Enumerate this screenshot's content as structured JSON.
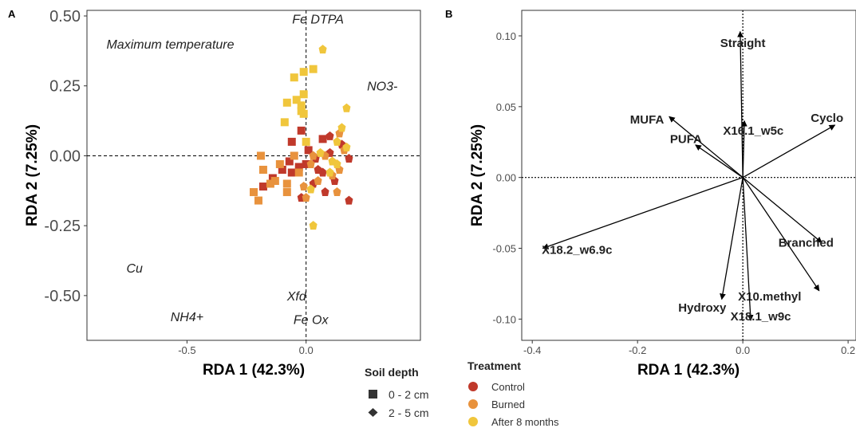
{
  "chart_data": [
    {
      "type": "scatter",
      "panel": "A",
      "xlabel": "RDA 1 (42.3%)",
      "ylabel": "RDA 2 (7.25%)",
      "xlim": [
        -0.92,
        0.48
      ],
      "ylim": [
        -0.66,
        0.52
      ],
      "xticks": [
        -0.5,
        0.0
      ],
      "xtick_labels": [
        "-0.5",
        "0.0"
      ],
      "yticks": [
        0.5,
        0.25,
        0.0,
        -0.25,
        -0.5
      ],
      "ytick_labels": [
        "0.50",
        "0.25",
        "0.00",
        "-0.25",
        "-0.50"
      ],
      "grid": false,
      "reference_lines": "dashed at x=0 and y=0",
      "env_labels": [
        {
          "text": "Fe DTPA",
          "x": 0.05,
          "y": 0.49
        },
        {
          "text": "Maximum temperature",
          "x": -0.57,
          "y": 0.4
        },
        {
          "text": "NO3-",
          "x": 0.32,
          "y": 0.25
        },
        {
          "text": "Cu",
          "x": -0.72,
          "y": -0.4
        },
        {
          "text": "Xfd",
          "x": -0.04,
          "y": -0.5
        },
        {
          "text": "NH4+",
          "x": -0.5,
          "y": -0.575
        },
        {
          "text": "Fe Ox",
          "x": 0.02,
          "y": -0.585
        }
      ],
      "series": [
        {
          "name": "Control",
          "shape": "square",
          "color": "#c0392b",
          "points": [
            [
              -0.06,
              0.05
            ],
            [
              0.01,
              0.02
            ],
            [
              -0.07,
              -0.02
            ],
            [
              -0.03,
              -0.04
            ],
            [
              -0.1,
              -0.05
            ],
            [
              -0.14,
              -0.08
            ],
            [
              -0.18,
              -0.11
            ],
            [
              -0.02,
              0.09
            ],
            [
              0.07,
              0.06
            ],
            [
              0.0,
              -0.03
            ],
            [
              -0.06,
              -0.06
            ]
          ]
        },
        {
          "name": "Control",
          "shape": "diamond",
          "color": "#c0392b",
          "points": [
            [
              0.04,
              -0.01
            ],
            [
              0.1,
              0.01
            ],
            [
              0.15,
              0.04
            ],
            [
              0.18,
              -0.01
            ],
            [
              0.07,
              -0.06
            ],
            [
              0.03,
              -0.1
            ],
            [
              0.12,
              -0.09
            ],
            [
              0.18,
              -0.16
            ],
            [
              0.08,
              -0.13
            ],
            [
              -0.02,
              -0.15
            ],
            [
              0.1,
              0.07
            ],
            [
              0.05,
              -0.05
            ]
          ]
        },
        {
          "name": "Burned",
          "shape": "square",
          "color": "#e8923d",
          "points": [
            [
              -0.18,
              -0.05
            ],
            [
              -0.15,
              -0.1
            ],
            [
              -0.2,
              -0.16
            ],
            [
              -0.22,
              -0.13
            ],
            [
              -0.08,
              -0.1
            ],
            [
              -0.11,
              -0.03
            ],
            [
              -0.05,
              0.0
            ],
            [
              -0.19,
              0.0
            ],
            [
              -0.13,
              -0.09
            ],
            [
              -0.03,
              -0.06
            ],
            [
              -0.08,
              -0.13
            ]
          ]
        },
        {
          "name": "Burned",
          "shape": "diamond",
          "color": "#e8923d",
          "points": [
            [
              0.02,
              -0.03
            ],
            [
              0.08,
              0.0
            ],
            [
              0.14,
              -0.05
            ],
            [
              0.05,
              -0.09
            ],
            [
              0.13,
              -0.13
            ],
            [
              0.0,
              -0.15
            ],
            [
              0.16,
              0.02
            ],
            [
              0.14,
              0.08
            ],
            [
              0.03,
              0.0
            ],
            [
              0.11,
              -0.07
            ],
            [
              -0.01,
              -0.11
            ]
          ]
        },
        {
          "name": "After 8 months",
          "shape": "square",
          "color": "#f0c63c",
          "points": [
            [
              -0.01,
              0.3
            ],
            [
              0.03,
              0.31
            ],
            [
              -0.05,
              0.28
            ],
            [
              -0.01,
              0.22
            ],
            [
              -0.02,
              0.18
            ],
            [
              -0.04,
              0.2
            ],
            [
              -0.08,
              0.19
            ],
            [
              -0.01,
              0.15
            ],
            [
              -0.09,
              0.12
            ],
            [
              0.0,
              0.05
            ],
            [
              -0.02,
              0.16
            ]
          ]
        },
        {
          "name": "After 8 months",
          "shape": "diamond",
          "color": "#f0c63c",
          "points": [
            [
              0.07,
              0.38
            ],
            [
              0.17,
              0.17
            ],
            [
              0.15,
              0.1
            ],
            [
              0.17,
              0.03
            ],
            [
              0.13,
              -0.03
            ],
            [
              0.1,
              -0.06
            ],
            [
              0.02,
              -0.12
            ],
            [
              0.03,
              -0.25
            ],
            [
              0.13,
              0.05
            ],
            [
              0.11,
              -0.02
            ],
            [
              0.06,
              0.01
            ]
          ]
        }
      ]
    },
    {
      "type": "biplot",
      "panel": "B",
      "xlabel": "RDA 1 (42.3%)",
      "ylabel": "RDA 2 (7.25%)",
      "xlim": [
        -0.42,
        0.215
      ],
      "ylim": [
        -0.115,
        0.118
      ],
      "xticks": [
        -0.4,
        -0.2,
        0.0,
        0.2
      ],
      "xtick_labels": [
        "-0.4",
        "-0.2",
        "0.0",
        "0.2"
      ],
      "yticks": [
        0.1,
        0.05,
        0.0,
        -0.05,
        -0.1
      ],
      "ytick_labels": [
        "0.10",
        "0.05",
        "0.00",
        "-0.05",
        "-0.10"
      ],
      "grid": false,
      "reference_lines": "dotted at x=0 and y=0",
      "vectors": [
        {
          "label": "Straight",
          "x": -0.005,
          "y": 0.103,
          "lx": 0.0,
          "ly": 0.095
        },
        {
          "label": "Cyclo",
          "x": 0.175,
          "y": 0.037,
          "lx": 0.16,
          "ly": 0.042
        },
        {
          "label": "MUFA",
          "x": -0.14,
          "y": 0.043,
          "lx": -0.182,
          "ly": 0.041
        },
        {
          "label": "PUFA",
          "x": -0.09,
          "y": 0.023,
          "lx": -0.108,
          "ly": 0.027
        },
        {
          "label": "X16.1_w5c",
          "x": 0.003,
          "y": 0.04,
          "lx": 0.02,
          "ly": 0.033
        },
        {
          "label": "X18.2_w6.9c",
          "x": -0.38,
          "y": -0.05,
          "lx": -0.315,
          "ly": -0.051
        },
        {
          "label": "Branched",
          "x": 0.15,
          "y": -0.046,
          "lx": 0.12,
          "ly": -0.046
        },
        {
          "label": "Hydroxy",
          "x": -0.04,
          "y": -0.086,
          "lx": -0.077,
          "ly": -0.092
        },
        {
          "label": "X10.methyl",
          "x": 0.145,
          "y": -0.08,
          "lx": 0.051,
          "ly": -0.084
        },
        {
          "label": "X18.1_w9c",
          "x": 0.015,
          "y": -0.101,
          "lx": 0.034,
          "ly": -0.098
        }
      ]
    }
  ],
  "panel_letters": {
    "a": "A",
    "b": "B"
  },
  "legend": {
    "soil_depth": {
      "title": "Soil depth",
      "items": [
        {
          "label": "0 - 2 cm",
          "shape": "square"
        },
        {
          "label": "2 - 5 cm",
          "shape": "diamond"
        }
      ]
    },
    "treatment": {
      "title": "Treatment",
      "items": [
        {
          "label": "Control",
          "color": "#c0392b"
        },
        {
          "label": "Burned",
          "color": "#e8923d"
        },
        {
          "label": "After 8 months",
          "color": "#f0c63c"
        }
      ]
    }
  }
}
